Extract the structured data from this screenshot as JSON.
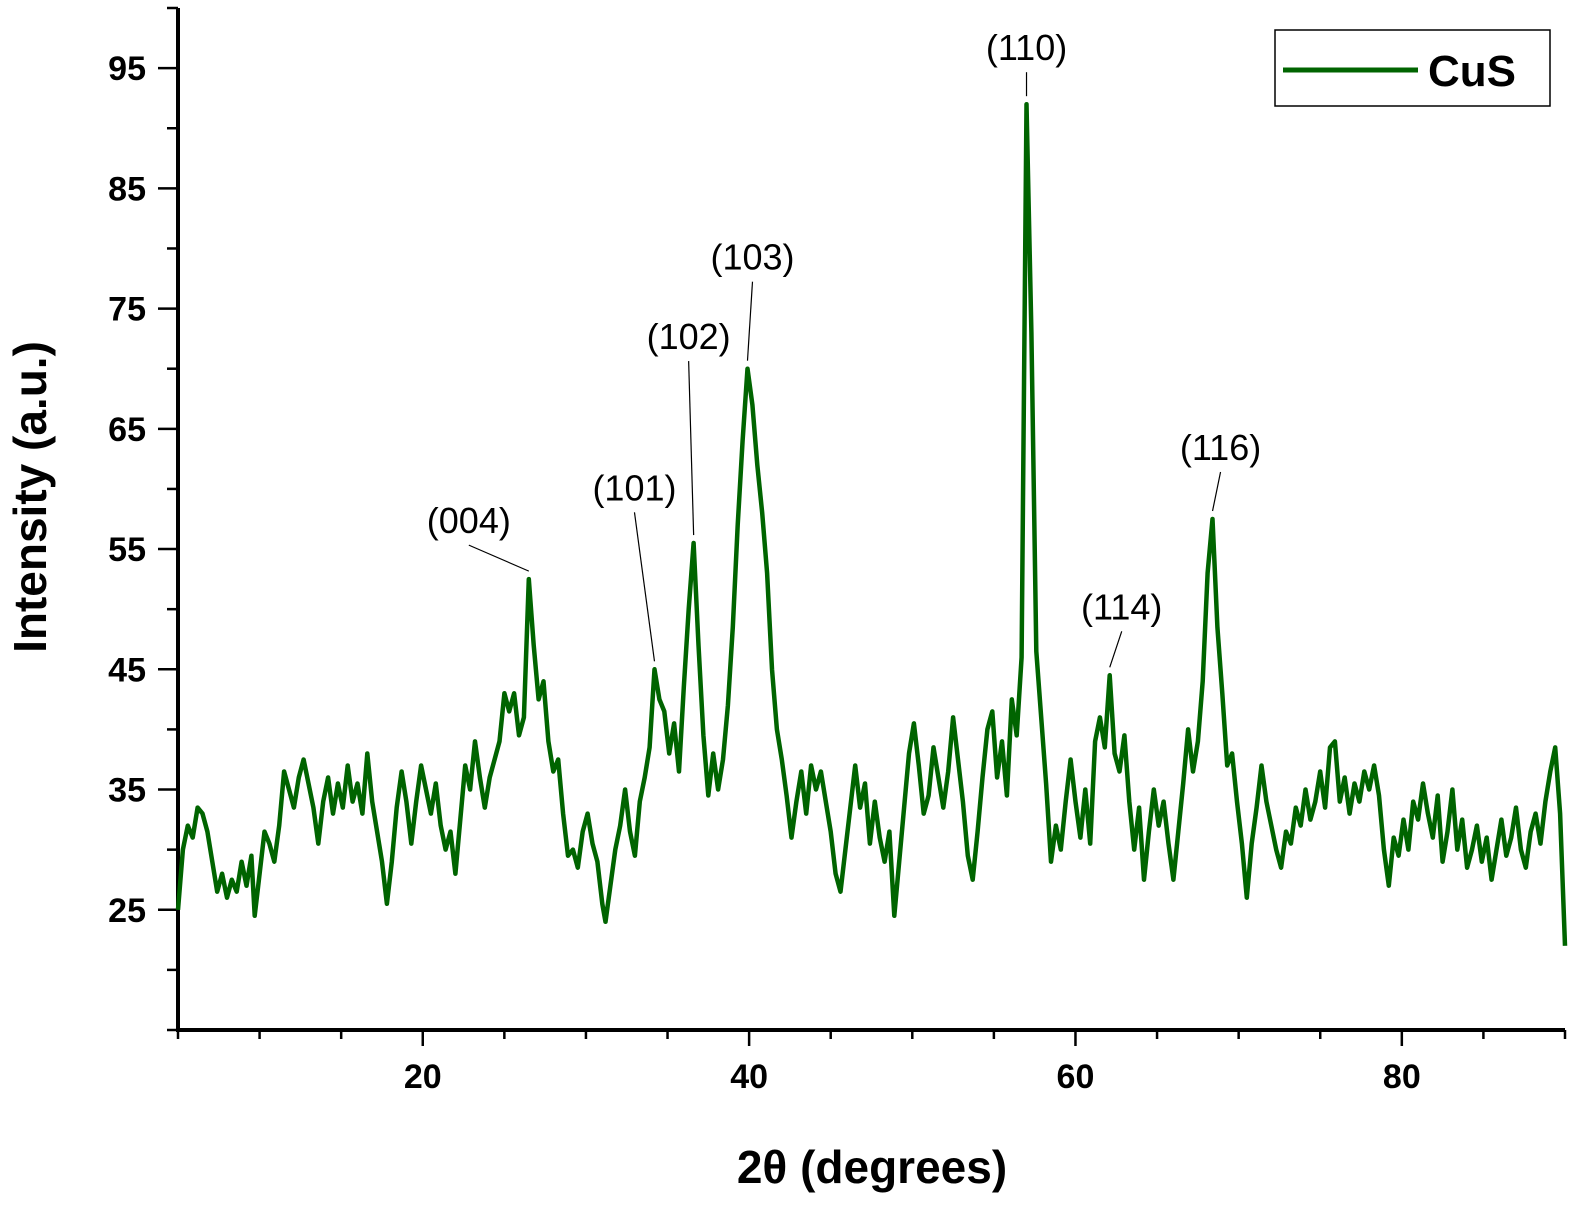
{
  "chart_data": {
    "type": "line",
    "xlabel": "2θ (degrees)",
    "ylabel": "Intensity (a.u.)",
    "xlim": [
      5,
      90
    ],
    "ylim": [
      15,
      100
    ],
    "x_ticks": [
      20,
      40,
      60,
      80
    ],
    "y_ticks": [
      25,
      35,
      45,
      55,
      65,
      75,
      85,
      95
    ],
    "x_minor_step": 5,
    "y_minor_step": 5,
    "grid": false,
    "legend_position": "top-right",
    "series": [
      {
        "name": "CuS",
        "color": "#006400",
        "points": [
          [
            5.0,
            25.0
          ],
          [
            5.3,
            30.0
          ],
          [
            5.6,
            32.0
          ],
          [
            5.9,
            31.0
          ],
          [
            6.2,
            33.5
          ],
          [
            6.5,
            33.0
          ],
          [
            6.8,
            31.5
          ],
          [
            7.1,
            29.0
          ],
          [
            7.4,
            26.5
          ],
          [
            7.7,
            28.0
          ],
          [
            8.0,
            26.0
          ],
          [
            8.3,
            27.5
          ],
          [
            8.6,
            26.5
          ],
          [
            8.9,
            29.0
          ],
          [
            9.2,
            27.0
          ],
          [
            9.5,
            29.5
          ],
          [
            9.7,
            24.5
          ],
          [
            10.0,
            28.0
          ],
          [
            10.3,
            31.5
          ],
          [
            10.6,
            30.5
          ],
          [
            10.9,
            29.0
          ],
          [
            11.2,
            32.0
          ],
          [
            11.5,
            36.5
          ],
          [
            11.8,
            35.0
          ],
          [
            12.1,
            33.5
          ],
          [
            12.4,
            36.0
          ],
          [
            12.7,
            37.5
          ],
          [
            13.0,
            35.5
          ],
          [
            13.3,
            33.5
          ],
          [
            13.6,
            30.5
          ],
          [
            13.9,
            34.0
          ],
          [
            14.2,
            36.0
          ],
          [
            14.5,
            33.0
          ],
          [
            14.8,
            35.5
          ],
          [
            15.1,
            33.5
          ],
          [
            15.4,
            37.0
          ],
          [
            15.7,
            34.0
          ],
          [
            16.0,
            35.5
          ],
          [
            16.3,
            33.0
          ],
          [
            16.6,
            38.0
          ],
          [
            16.9,
            34.0
          ],
          [
            17.2,
            31.5
          ],
          [
            17.5,
            29.0
          ],
          [
            17.8,
            25.5
          ],
          [
            18.1,
            29.0
          ],
          [
            18.4,
            33.5
          ],
          [
            18.7,
            36.5
          ],
          [
            19.0,
            34.0
          ],
          [
            19.3,
            30.5
          ],
          [
            19.6,
            34.0
          ],
          [
            19.9,
            37.0
          ],
          [
            20.2,
            35.0
          ],
          [
            20.5,
            33.0
          ],
          [
            20.8,
            35.5
          ],
          [
            21.1,
            32.0
          ],
          [
            21.4,
            30.0
          ],
          [
            21.7,
            31.5
          ],
          [
            22.0,
            28.0
          ],
          [
            22.3,
            32.5
          ],
          [
            22.6,
            37.0
          ],
          [
            22.9,
            35.0
          ],
          [
            23.2,
            39.0
          ],
          [
            23.5,
            36.0
          ],
          [
            23.8,
            33.5
          ],
          [
            24.1,
            36.0
          ],
          [
            24.4,
            37.5
          ],
          [
            24.7,
            39.0
          ],
          [
            25.0,
            43.0
          ],
          [
            25.3,
            41.5
          ],
          [
            25.6,
            43.0
          ],
          [
            25.9,
            39.5
          ],
          [
            26.2,
            41.0
          ],
          [
            26.5,
            52.5
          ],
          [
            26.8,
            47.0
          ],
          [
            27.1,
            42.5
          ],
          [
            27.4,
            44.0
          ],
          [
            27.7,
            39.0
          ],
          [
            28.0,
            36.5
          ],
          [
            28.3,
            37.5
          ],
          [
            28.6,
            33.0
          ],
          [
            28.9,
            29.5
          ],
          [
            29.2,
            30.0
          ],
          [
            29.5,
            28.5
          ],
          [
            29.8,
            31.5
          ],
          [
            30.1,
            33.0
          ],
          [
            30.4,
            30.5
          ],
          [
            30.7,
            29.0
          ],
          [
            31.0,
            25.5
          ],
          [
            31.2,
            24.0
          ],
          [
            31.5,
            27.0
          ],
          [
            31.8,
            30.0
          ],
          [
            32.1,
            32.0
          ],
          [
            32.4,
            35.0
          ],
          [
            32.7,
            31.5
          ],
          [
            33.0,
            29.5
          ],
          [
            33.3,
            34.0
          ],
          [
            33.6,
            36.0
          ],
          [
            33.9,
            38.5
          ],
          [
            34.2,
            45.0
          ],
          [
            34.5,
            42.5
          ],
          [
            34.8,
            41.5
          ],
          [
            35.1,
            38.0
          ],
          [
            35.4,
            40.5
          ],
          [
            35.7,
            36.5
          ],
          [
            36.0,
            43.5
          ],
          [
            36.3,
            50.0
          ],
          [
            36.6,
            55.5
          ],
          [
            36.9,
            47.0
          ],
          [
            37.2,
            39.5
          ],
          [
            37.5,
            34.5
          ],
          [
            37.8,
            38.0
          ],
          [
            38.1,
            35.0
          ],
          [
            38.4,
            37.5
          ],
          [
            38.7,
            42.0
          ],
          [
            39.0,
            48.5
          ],
          [
            39.3,
            57.0
          ],
          [
            39.6,
            64.0
          ],
          [
            39.9,
            70.0
          ],
          [
            40.2,
            67.0
          ],
          [
            40.5,
            62.0
          ],
          [
            40.8,
            58.0
          ],
          [
            41.1,
            53.0
          ],
          [
            41.4,
            45.0
          ],
          [
            41.7,
            40.0
          ],
          [
            42.0,
            37.5
          ],
          [
            42.3,
            34.5
          ],
          [
            42.6,
            31.0
          ],
          [
            42.9,
            34.0
          ],
          [
            43.2,
            36.5
          ],
          [
            43.5,
            33.0
          ],
          [
            43.8,
            37.0
          ],
          [
            44.1,
            35.0
          ],
          [
            44.4,
            36.5
          ],
          [
            44.7,
            34.0
          ],
          [
            45.0,
            31.5
          ],
          [
            45.3,
            28.0
          ],
          [
            45.6,
            26.5
          ],
          [
            45.9,
            30.0
          ],
          [
            46.2,
            33.5
          ],
          [
            46.5,
            37.0
          ],
          [
            46.8,
            33.5
          ],
          [
            47.1,
            35.5
          ],
          [
            47.4,
            30.5
          ],
          [
            47.7,
            34.0
          ],
          [
            48.0,
            31.0
          ],
          [
            48.3,
            29.0
          ],
          [
            48.6,
            31.5
          ],
          [
            48.9,
            24.5
          ],
          [
            49.2,
            29.0
          ],
          [
            49.5,
            33.5
          ],
          [
            49.8,
            38.0
          ],
          [
            50.1,
            40.5
          ],
          [
            50.4,
            37.0
          ],
          [
            50.7,
            33.0
          ],
          [
            51.0,
            34.5
          ],
          [
            51.3,
            38.5
          ],
          [
            51.6,
            36.0
          ],
          [
            51.9,
            33.5
          ],
          [
            52.2,
            36.5
          ],
          [
            52.5,
            41.0
          ],
          [
            52.8,
            37.5
          ],
          [
            53.1,
            34.0
          ],
          [
            53.4,
            29.5
          ],
          [
            53.7,
            27.5
          ],
          [
            54.0,
            31.5
          ],
          [
            54.3,
            36.0
          ],
          [
            54.6,
            40.0
          ],
          [
            54.9,
            41.5
          ],
          [
            55.2,
            36.0
          ],
          [
            55.5,
            39.0
          ],
          [
            55.8,
            34.5
          ],
          [
            56.1,
            42.5
          ],
          [
            56.4,
            39.5
          ],
          [
            56.7,
            46.0
          ],
          [
            57.0,
            92.0
          ],
          [
            57.3,
            73.0
          ],
          [
            57.6,
            46.5
          ],
          [
            57.9,
            41.0
          ],
          [
            58.2,
            35.5
          ],
          [
            58.5,
            29.0
          ],
          [
            58.8,
            32.0
          ],
          [
            59.1,
            30.0
          ],
          [
            59.4,
            34.0
          ],
          [
            59.7,
            37.5
          ],
          [
            60.0,
            34.0
          ],
          [
            60.3,
            31.0
          ],
          [
            60.6,
            35.0
          ],
          [
            60.9,
            30.5
          ],
          [
            61.2,
            39.0
          ],
          [
            61.5,
            41.0
          ],
          [
            61.8,
            38.5
          ],
          [
            62.1,
            44.5
          ],
          [
            62.4,
            38.0
          ],
          [
            62.7,
            36.5
          ],
          [
            63.0,
            39.5
          ],
          [
            63.3,
            34.0
          ],
          [
            63.6,
            30.0
          ],
          [
            63.9,
            33.5
          ],
          [
            64.2,
            27.5
          ],
          [
            64.5,
            31.5
          ],
          [
            64.8,
            35.0
          ],
          [
            65.1,
            32.0
          ],
          [
            65.4,
            34.0
          ],
          [
            65.7,
            30.5
          ],
          [
            66.0,
            27.5
          ],
          [
            66.3,
            31.5
          ],
          [
            66.6,
            35.5
          ],
          [
            66.9,
            40.0
          ],
          [
            67.2,
            36.5
          ],
          [
            67.5,
            39.0
          ],
          [
            67.8,
            44.0
          ],
          [
            68.1,
            53.0
          ],
          [
            68.4,
            57.5
          ],
          [
            68.7,
            48.5
          ],
          [
            69.0,
            43.0
          ],
          [
            69.3,
            37.0
          ],
          [
            69.6,
            38.0
          ],
          [
            69.9,
            34.0
          ],
          [
            70.2,
            30.5
          ],
          [
            70.5,
            26.0
          ],
          [
            70.8,
            30.5
          ],
          [
            71.1,
            33.5
          ],
          [
            71.4,
            37.0
          ],
          [
            71.7,
            34.0
          ],
          [
            72.0,
            32.0
          ],
          [
            72.3,
            30.0
          ],
          [
            72.6,
            28.5
          ],
          [
            72.9,
            31.5
          ],
          [
            73.2,
            30.5
          ],
          [
            73.5,
            33.5
          ],
          [
            73.8,
            32.0
          ],
          [
            74.1,
            35.0
          ],
          [
            74.4,
            32.5
          ],
          [
            74.7,
            34.0
          ],
          [
            75.0,
            36.5
          ],
          [
            75.3,
            33.5
          ],
          [
            75.6,
            38.5
          ],
          [
            75.9,
            39.0
          ],
          [
            76.2,
            34.0
          ],
          [
            76.5,
            36.0
          ],
          [
            76.8,
            33.0
          ],
          [
            77.1,
            35.5
          ],
          [
            77.4,
            34.0
          ],
          [
            77.7,
            36.5
          ],
          [
            78.0,
            35.0
          ],
          [
            78.3,
            37.0
          ],
          [
            78.6,
            34.5
          ],
          [
            78.9,
            30.0
          ],
          [
            79.2,
            27.0
          ],
          [
            79.5,
            31.0
          ],
          [
            79.8,
            29.5
          ],
          [
            80.1,
            32.5
          ],
          [
            80.4,
            30.0
          ],
          [
            80.7,
            34.0
          ],
          [
            81.0,
            32.5
          ],
          [
            81.3,
            35.5
          ],
          [
            81.6,
            33.0
          ],
          [
            81.9,
            31.0
          ],
          [
            82.2,
            34.5
          ],
          [
            82.5,
            29.0
          ],
          [
            82.8,
            31.5
          ],
          [
            83.1,
            35.0
          ],
          [
            83.4,
            30.0
          ],
          [
            83.7,
            32.5
          ],
          [
            84.0,
            28.5
          ],
          [
            84.3,
            30.0
          ],
          [
            84.6,
            32.0
          ],
          [
            84.9,
            29.0
          ],
          [
            85.2,
            31.0
          ],
          [
            85.5,
            27.5
          ],
          [
            85.8,
            30.0
          ],
          [
            86.1,
            32.5
          ],
          [
            86.4,
            29.5
          ],
          [
            86.7,
            31.0
          ],
          [
            87.0,
            33.5
          ],
          [
            87.3,
            30.0
          ],
          [
            87.6,
            28.5
          ],
          [
            87.9,
            31.5
          ],
          [
            88.2,
            33.0
          ],
          [
            88.5,
            30.5
          ],
          [
            88.8,
            34.0
          ],
          [
            89.1,
            36.5
          ],
          [
            89.4,
            38.5
          ],
          [
            89.7,
            33.0
          ],
          [
            90.0,
            22.0
          ]
        ]
      }
    ],
    "annotations": [
      {
        "label": "(004)",
        "x": 26.5,
        "y": 52.5
      },
      {
        "label": "(101)",
        "x": 34.2,
        "y": 45.0
      },
      {
        "label": "(102)",
        "x": 36.6,
        "y": 55.5
      },
      {
        "label": "(103)",
        "x": 39.9,
        "y": 70.0
      },
      {
        "label": "(110)",
        "x": 57.0,
        "y": 92.0
      },
      {
        "label": "(114)",
        "x": 62.1,
        "y": 44.5
      },
      {
        "label": "(116)",
        "x": 68.4,
        "y": 57.5
      }
    ]
  }
}
